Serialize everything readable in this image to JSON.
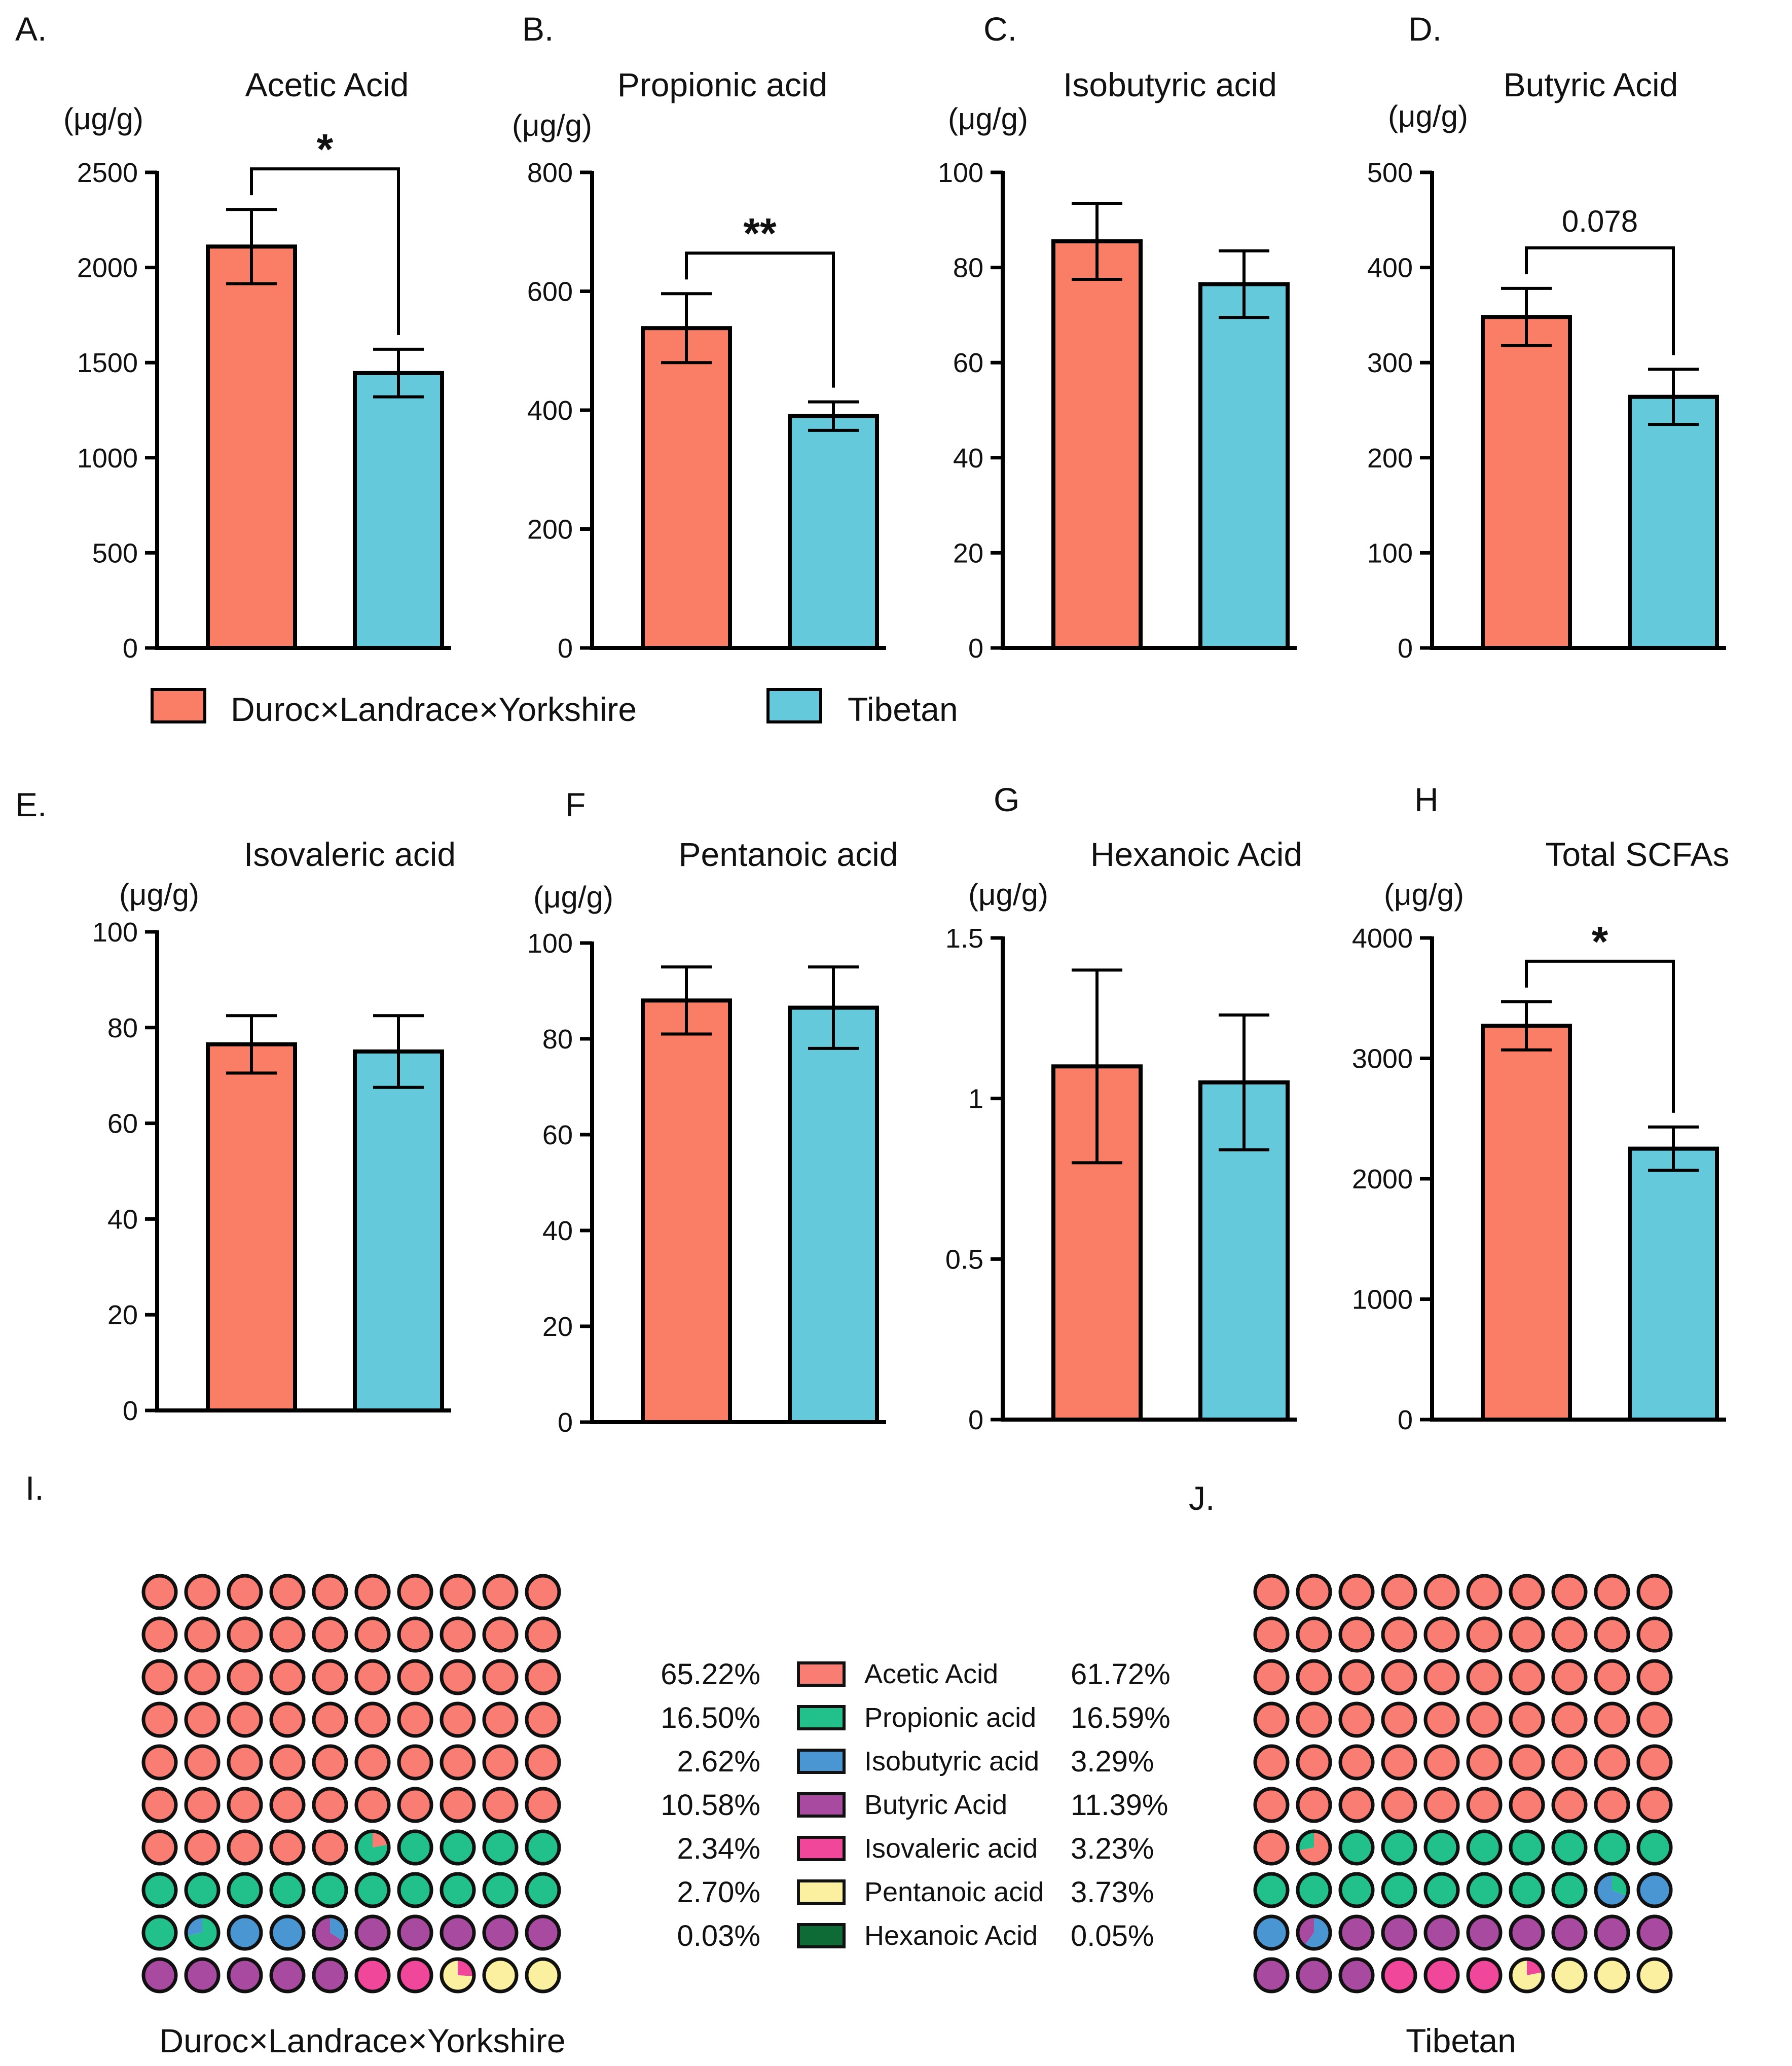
{
  "groups": [
    "Duroc×Landrace×Yorkshire",
    "Tibetan"
  ],
  "colors": {
    "duroc": "#FA7D65",
    "tibetan": "#64C9DB",
    "acetic": "#FA7D73",
    "propionic": "#22C08A",
    "isobutyric": "#4A96D2",
    "butyric": "#A84BA0",
    "isovaleric": "#F0479A",
    "pentanoic": "#FAF0A0",
    "hexanoic": "#0E6B35"
  },
  "legend": {
    "duroc": "Duroc×Landrace×Yorkshire",
    "tibetan": "Tibetan"
  },
  "chart_data": [
    {
      "panel": "A.",
      "type": "bar",
      "title": "Acetic Acid",
      "ylabel": "(μg/g)",
      "ylim": [
        0,
        2500
      ],
      "yticks": [
        0,
        500,
        1000,
        1500,
        2000,
        2500
      ],
      "tick_labels": [
        "0",
        "500",
        "1000",
        "1500",
        "2000",
        "2500"
      ],
      "categories": [
        "Duroc×Landrace×Yorkshire",
        "Tibetan"
      ],
      "values": [
        2110,
        1445
      ],
      "errors": [
        195,
        125
      ],
      "significance": "*"
    },
    {
      "panel": "B.",
      "type": "bar",
      "title": "Propionic acid",
      "ylabel": "(μg/g)",
      "ylim": [
        0,
        800
      ],
      "yticks": [
        0,
        200,
        400,
        600,
        800
      ],
      "tick_labels": [
        "0",
        "200",
        "400",
        "600",
        "800"
      ],
      "categories": [
        "Duroc×Landrace×Yorkshire",
        "Tibetan"
      ],
      "values": [
        538,
        390
      ],
      "errors": [
        58,
        24
      ],
      "significance": "**"
    },
    {
      "panel": "C.",
      "type": "bar",
      "title": "Isobutyric acid",
      "ylabel": "(μg/g)",
      "ylim": [
        0,
        100
      ],
      "yticks": [
        0,
        20,
        40,
        60,
        80,
        100
      ],
      "tick_labels": [
        "0",
        "20",
        "40",
        "60",
        "80",
        "100"
      ],
      "categories": [
        "Duroc×Landrace×Yorkshire",
        "Tibetan"
      ],
      "values": [
        85.5,
        76.5
      ],
      "errors": [
        8,
        7
      ],
      "significance": ""
    },
    {
      "panel": "D.",
      "type": "bar",
      "title": "Butyric Acid",
      "ylabel": "(μg/g)",
      "ylim": [
        0,
        500
      ],
      "yticks": [
        0,
        100,
        200,
        300,
        400,
        500
      ],
      "tick_labels": [
        "0",
        "100",
        "200",
        "300",
        "400",
        "500"
      ],
      "categories": [
        "Duroc×Landrace×Yorkshire",
        "Tibetan"
      ],
      "values": [
        348,
        264
      ],
      "errors": [
        30,
        29
      ],
      "significance": "0.078"
    },
    {
      "panel": "E.",
      "type": "bar",
      "title": "Isovaleric acid",
      "ylabel": "(μg/g)",
      "ylim": [
        0,
        100
      ],
      "yticks": [
        0,
        20,
        40,
        60,
        80,
        100
      ],
      "tick_labels": [
        "0",
        "20",
        "40",
        "60",
        "80",
        "100"
      ],
      "categories": [
        "Duroc×Landrace×Yorkshire",
        "Tibetan"
      ],
      "values": [
        76.5,
        75
      ],
      "errors": [
        6,
        7.5
      ],
      "significance": ""
    },
    {
      "panel": "F",
      "type": "bar",
      "title": "Pentanoic acid",
      "ylabel": "(μg/g)",
      "ylim": [
        0,
        100
      ],
      "yticks": [
        0,
        20,
        40,
        60,
        80,
        100
      ],
      "tick_labels": [
        "0",
        "20",
        "40",
        "60",
        "80",
        "100"
      ],
      "categories": [
        "Duroc×Landrace×Yorkshire",
        "Tibetan"
      ],
      "values": [
        88,
        86.5
      ],
      "errors": [
        7,
        8.5
      ],
      "significance": ""
    },
    {
      "panel": "G",
      "type": "bar",
      "title": "Hexanoic Acid",
      "ylabel": "(μg/g)",
      "ylim": [
        0,
        1.5
      ],
      "yticks": [
        0,
        0.5,
        1,
        1.5
      ],
      "tick_labels": [
        "0",
        "0.5",
        "1",
        "1.5"
      ],
      "categories": [
        "Duroc×Landrace×Yorkshire",
        "Tibetan"
      ],
      "values": [
        1.1,
        1.05
      ],
      "errors": [
        0.3,
        0.21
      ],
      "significance": ""
    },
    {
      "panel": "H",
      "type": "bar",
      "title": "Total SCFAs",
      "ylabel": "(μg/g)",
      "ylim": [
        0,
        4000
      ],
      "yticks": [
        0,
        1000,
        2000,
        3000,
        4000
      ],
      "tick_labels": [
        "0",
        "1000",
        "2000",
        "3000",
        "4000"
      ],
      "categories": [
        "Duroc×Landrace×Yorkshire",
        "Tibetan"
      ],
      "values": [
        3270,
        2250
      ],
      "errors": [
        200,
        180
      ],
      "significance": "*"
    },
    {
      "panel": "I.",
      "type": "waffle",
      "group": "Duroc×Landrace×Yorkshire",
      "grid": [
        10,
        10
      ],
      "categories": [
        "Acetic Acid",
        "Propionic acid",
        "Isobutyric acid",
        "Butyric Acid",
        "Isovaleric acid",
        "Pentanoic acid",
        "Hexanoic Acid"
      ],
      "percentages": [
        "65.22%",
        "16.50%",
        "2.62%",
        "10.58%",
        "2.34%",
        "2.70%",
        "0.03%"
      ],
      "values": [
        65.22,
        16.5,
        2.62,
        10.58,
        2.34,
        2.7,
        0.03
      ]
    },
    {
      "panel": "J.",
      "type": "waffle",
      "group": "Tibetan",
      "grid": [
        10,
        10
      ],
      "categories": [
        "Acetic Acid",
        "Propionic acid",
        "Isobutyric acid",
        "Butyric Acid",
        "Isovaleric acid",
        "Pentanoic acid",
        "Hexanoic Acid"
      ],
      "percentages": [
        "61.72%",
        "16.59%",
        "3.29%",
        "11.39%",
        "3.23%",
        "3.73%",
        "0.05%"
      ],
      "values": [
        61.72,
        16.59,
        3.29,
        11.39,
        3.23,
        3.73,
        0.05
      ]
    }
  ]
}
